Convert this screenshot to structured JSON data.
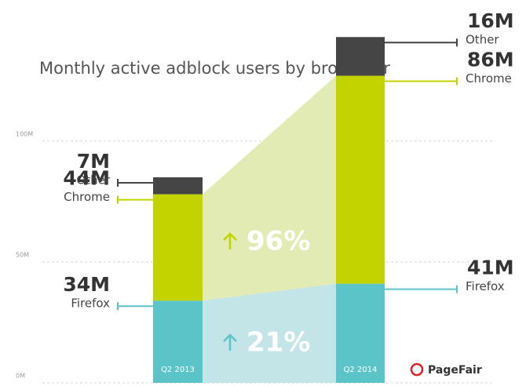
{
  "chart_data": {
    "type": "stacked-bar",
    "title": "Monthly active adblock users by browswer",
    "categories": [
      "Q2 2013",
      "Q2 2014"
    ],
    "series": [
      {
        "name": "Firefox",
        "color": "#5bc4c8",
        "values": [
          34,
          41
        ],
        "value_labels": [
          "34M",
          "41M"
        ]
      },
      {
        "name": "Chrome",
        "color": "#c2d300",
        "values": [
          44,
          86
        ],
        "value_labels": [
          "44M",
          "86M"
        ]
      },
      {
        "name": "Other",
        "color": "#454545",
        "values": [
          7,
          16
        ],
        "value_labels": [
          "7M",
          "16M"
        ]
      }
    ],
    "ylim": [
      0,
      158
    ],
    "yticks": [
      {
        "value": 0,
        "label": "0M"
      },
      {
        "value": 50,
        "label": "50M"
      },
      {
        "value": 100,
        "label": "100M"
      }
    ],
    "grid": true,
    "annotations": [
      {
        "text": "96%"
      },
      {
        "text": "21%"
      }
    ],
    "logo": "PageFair"
  }
}
